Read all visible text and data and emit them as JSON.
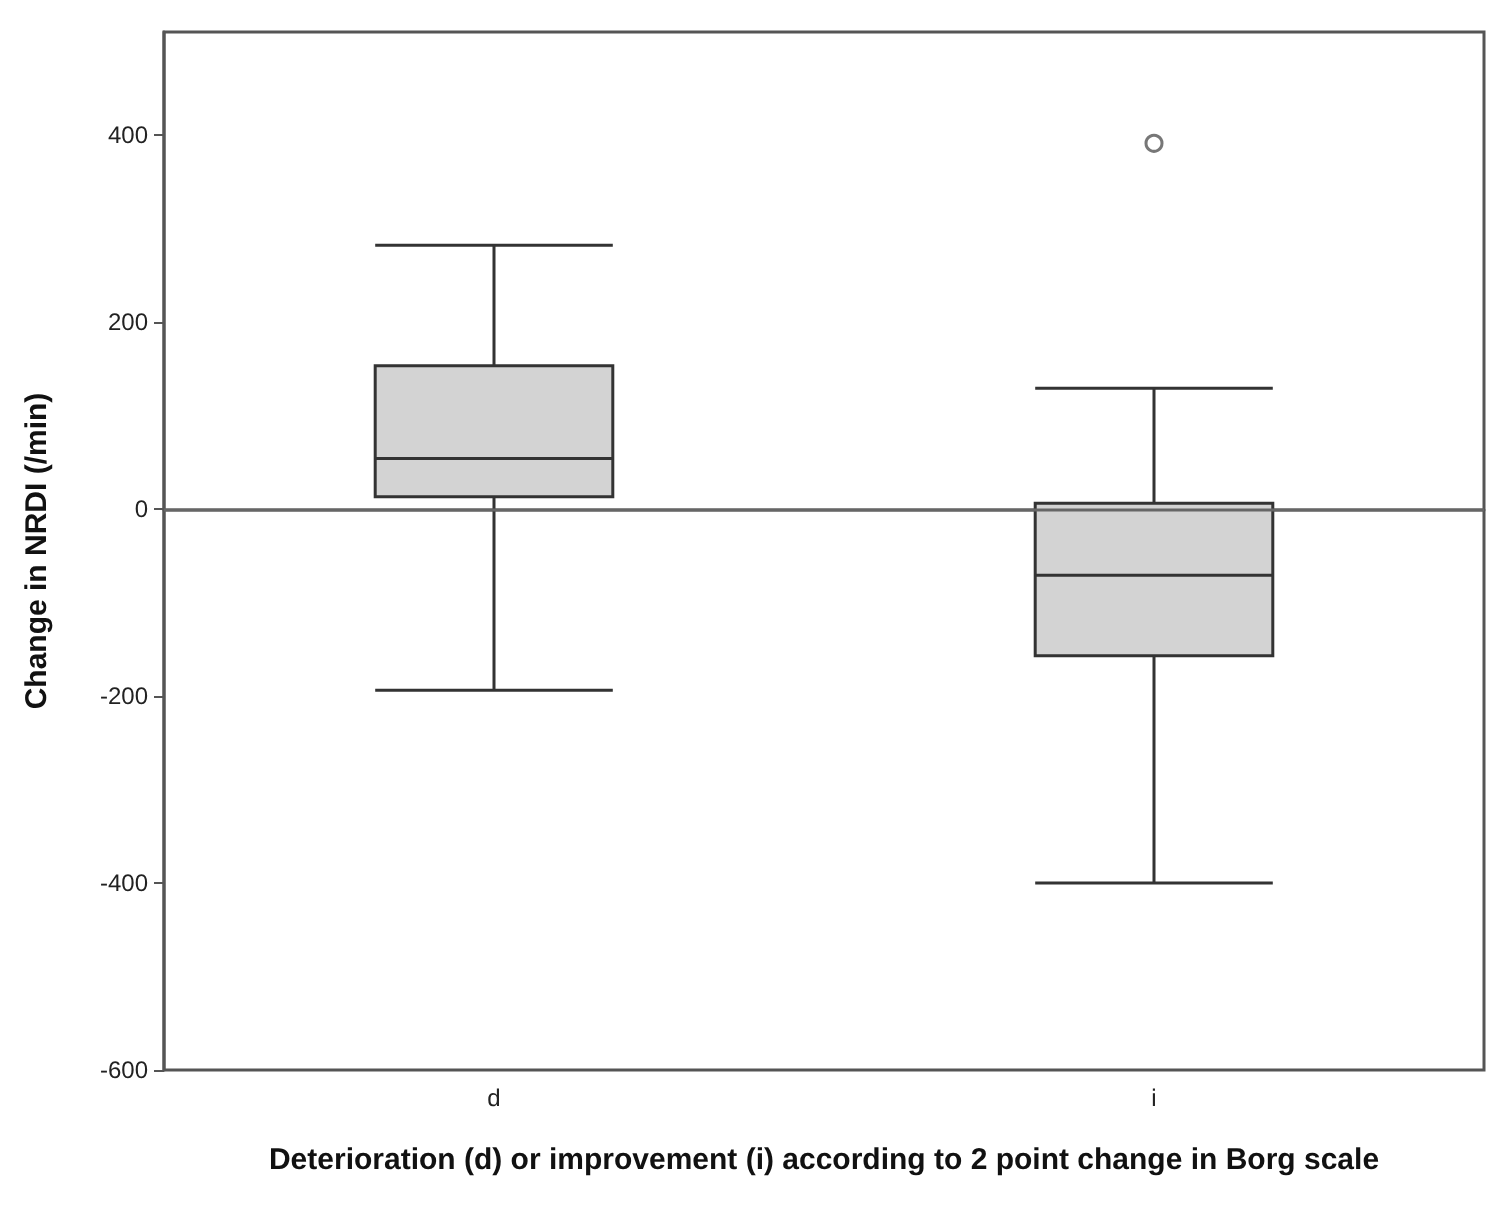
{
  "chart_data": {
    "type": "box",
    "xlabel": "Deterioration (d) or improvement (i) according to 2 point change in Borg scale",
    "ylabel": "Change in NRDI (/min)",
    "categories": [
      "d",
      "i"
    ],
    "boxes": [
      {
        "low": -194,
        "q1": 13,
        "median": 54,
        "q3": 153,
        "high": 282
      },
      {
        "low": -400,
        "q1": -157,
        "median": -71,
        "q3": 6,
        "high": 129,
        "outliers": [
          391
        ]
      }
    ],
    "color": "#d3d3d3",
    "ylim": [
      -600,
      510
    ],
    "yticks": [
      -600,
      -400,
      -200,
      0,
      200,
      400
    ],
    "ref_lines": [
      {
        "axis": "y",
        "value": 0,
        "color": "#666666"
      }
    ],
    "grid": false,
    "marker": "circle"
  }
}
